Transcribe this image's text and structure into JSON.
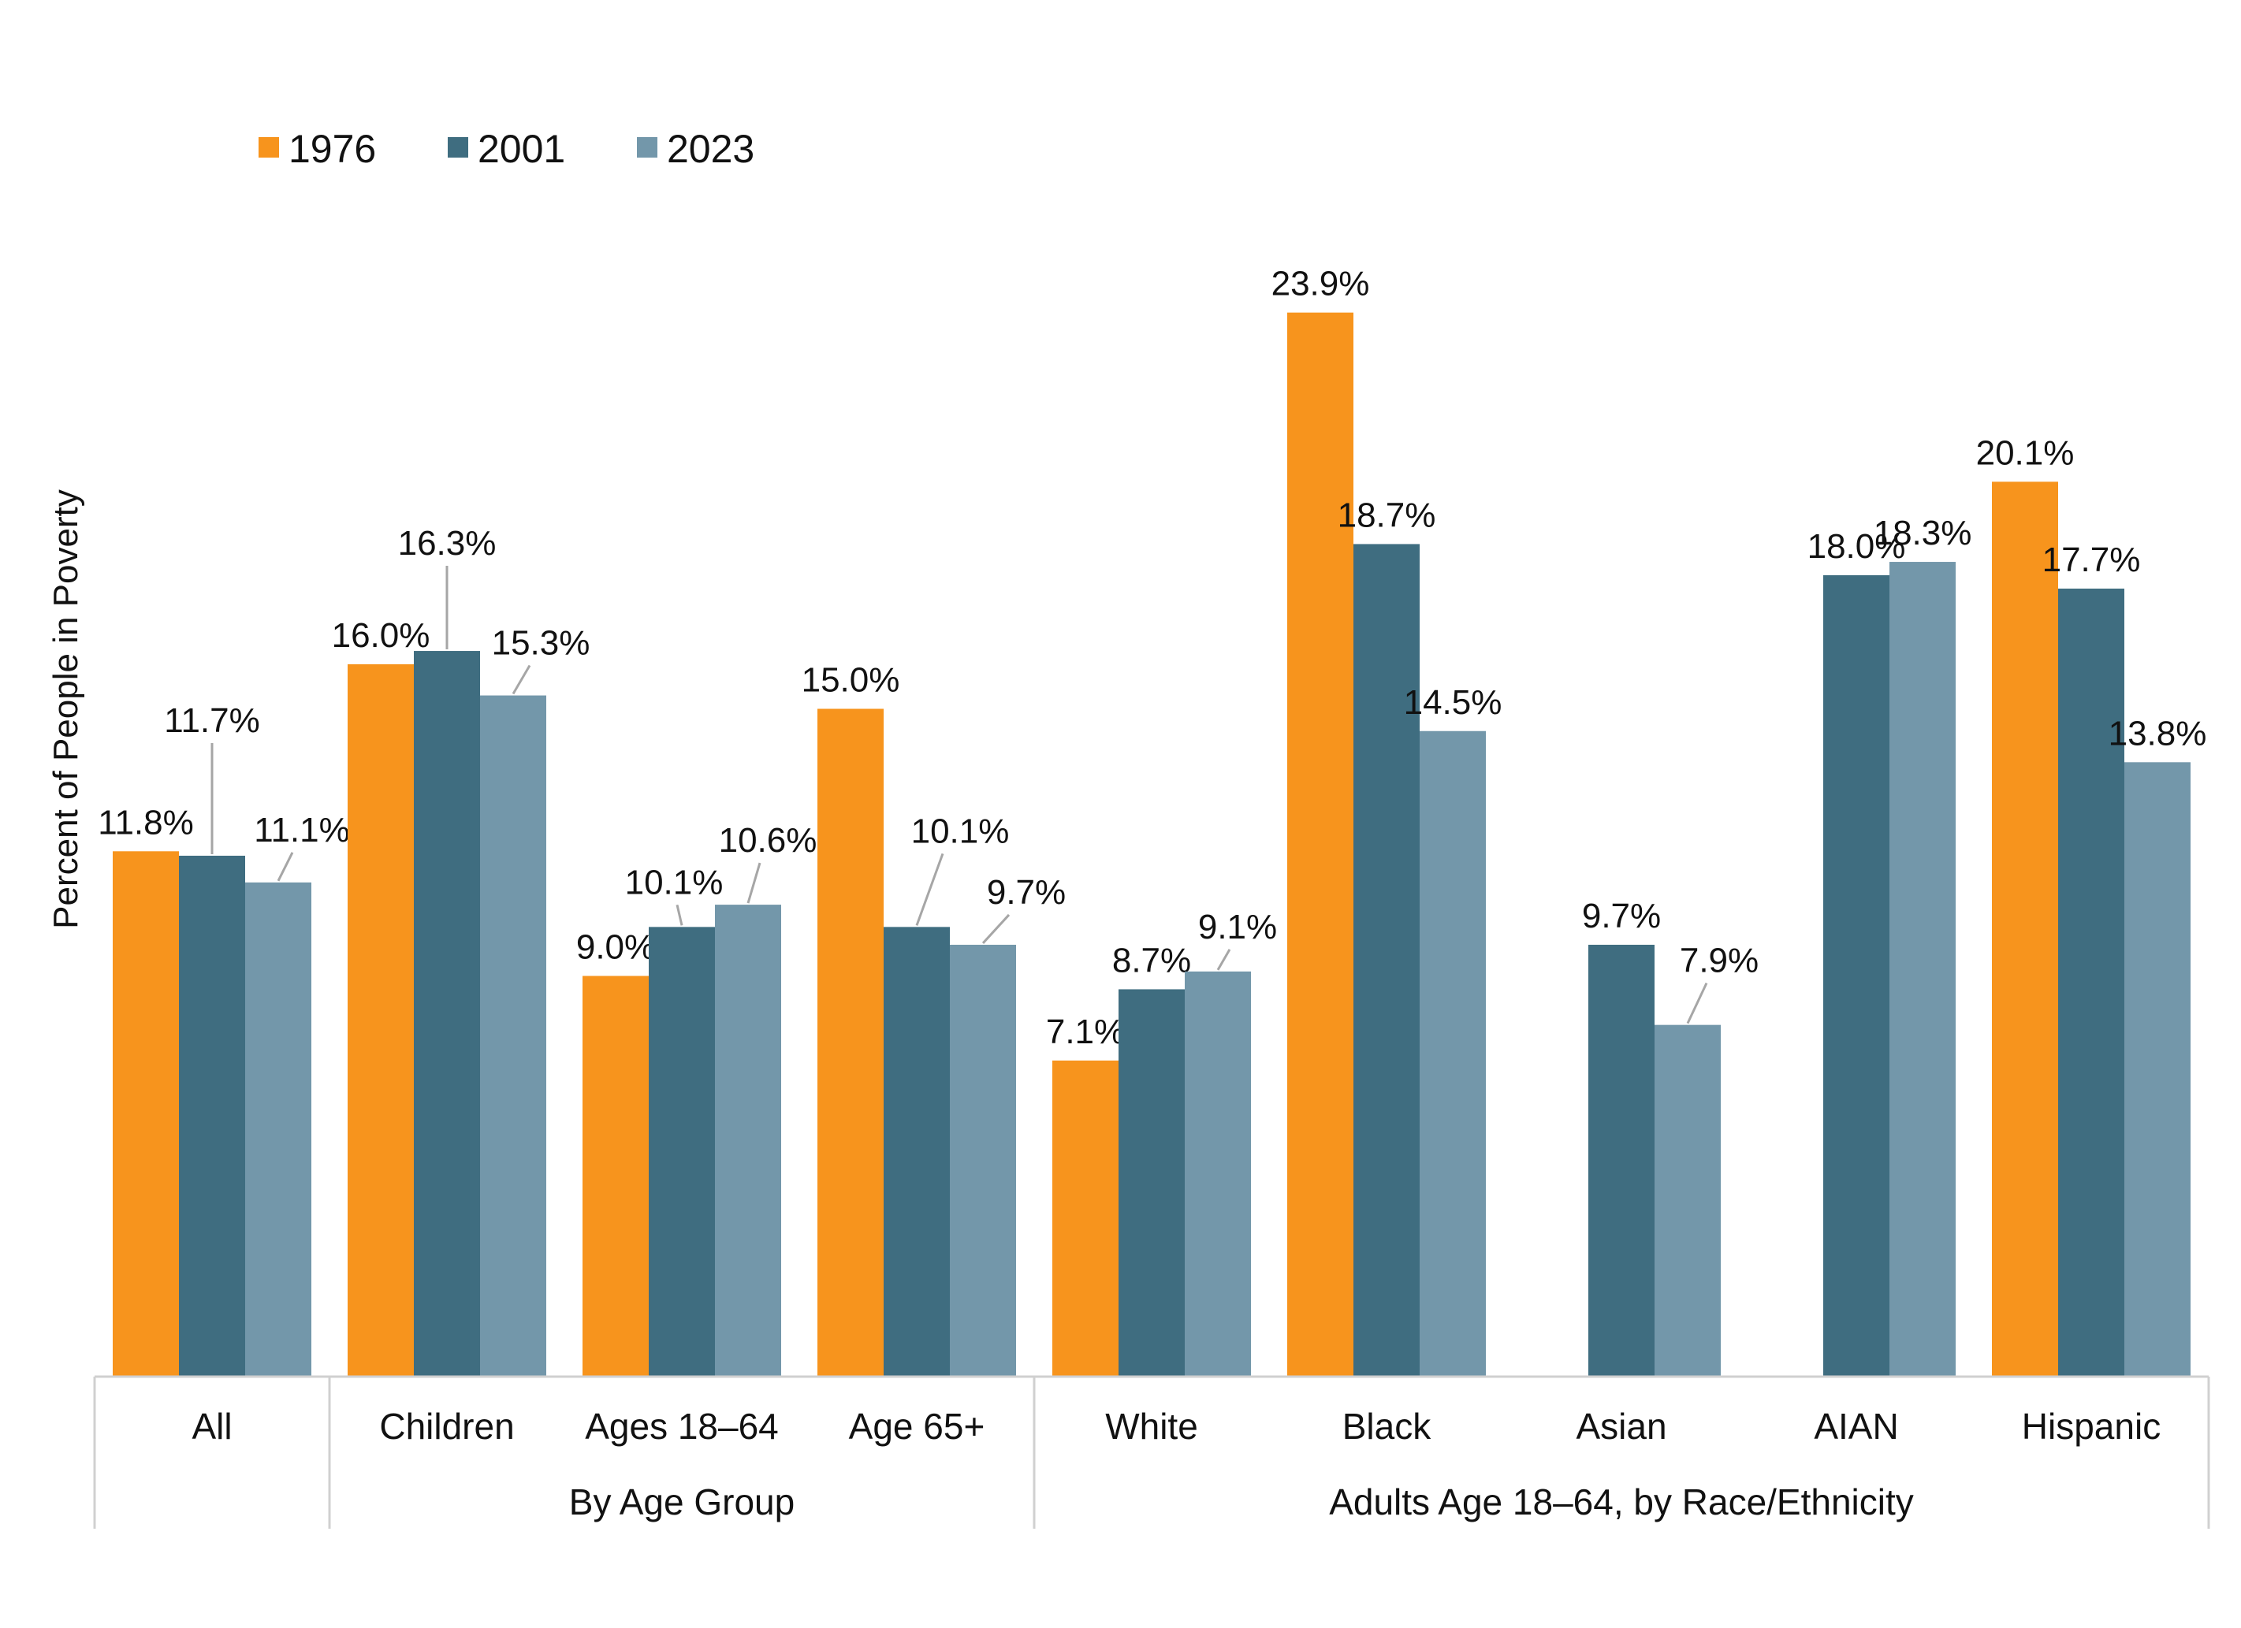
{
  "chart_data": {
    "type": "bar",
    "title": "",
    "ylabel": "Percent of  People in Poverty",
    "xlabel": "",
    "ylim": [
      0,
      25
    ],
    "grid": false,
    "legend_position": "top-left",
    "categories": [
      "All",
      "Children",
      "Ages 18–64",
      "Age 65+",
      "White",
      "Black",
      "Asian",
      "AIAN",
      "Hispanic"
    ],
    "category_groups": [
      {
        "label": "",
        "categories": [
          "All"
        ]
      },
      {
        "label": "By Age Group",
        "categories": [
          "Children",
          "Ages 18–64",
          "Age 65+"
        ]
      },
      {
        "label": "Adults Age 18–64, by Race/Ethnicity",
        "categories": [
          "White",
          "Black",
          "Asian",
          "AIAN",
          "Hispanic"
        ]
      }
    ],
    "series": [
      {
        "name": "1976",
        "color": "#f7941d",
        "values": [
          11.8,
          16.0,
          9.0,
          15.0,
          7.1,
          23.9,
          null,
          null,
          20.1
        ],
        "labels": [
          "11.8%",
          "16.0%",
          "9.0%",
          "15.0%",
          "7.1%",
          "23.9%",
          null,
          null,
          "20.1%"
        ]
      },
      {
        "name": "2001",
        "color": "#3f6d80",
        "values": [
          11.7,
          16.3,
          10.1,
          10.1,
          8.7,
          18.7,
          9.7,
          18.0,
          17.7
        ],
        "labels": [
          "11.7%",
          "16.3%",
          "10.1%",
          "10.1%",
          "8.7%",
          "18.7%",
          "9.7%",
          "18.0%",
          "17.7%"
        ]
      },
      {
        "name": "2023",
        "color": "#7397aa",
        "values": [
          11.1,
          15.3,
          10.6,
          9.7,
          9.1,
          14.5,
          7.9,
          18.3,
          13.8
        ],
        "labels": [
          "11.1%",
          "15.3%",
          "10.6%",
          "9.7%",
          "9.1%",
          "14.5%",
          "7.9%",
          "18.3%",
          "13.8%"
        ]
      }
    ]
  }
}
